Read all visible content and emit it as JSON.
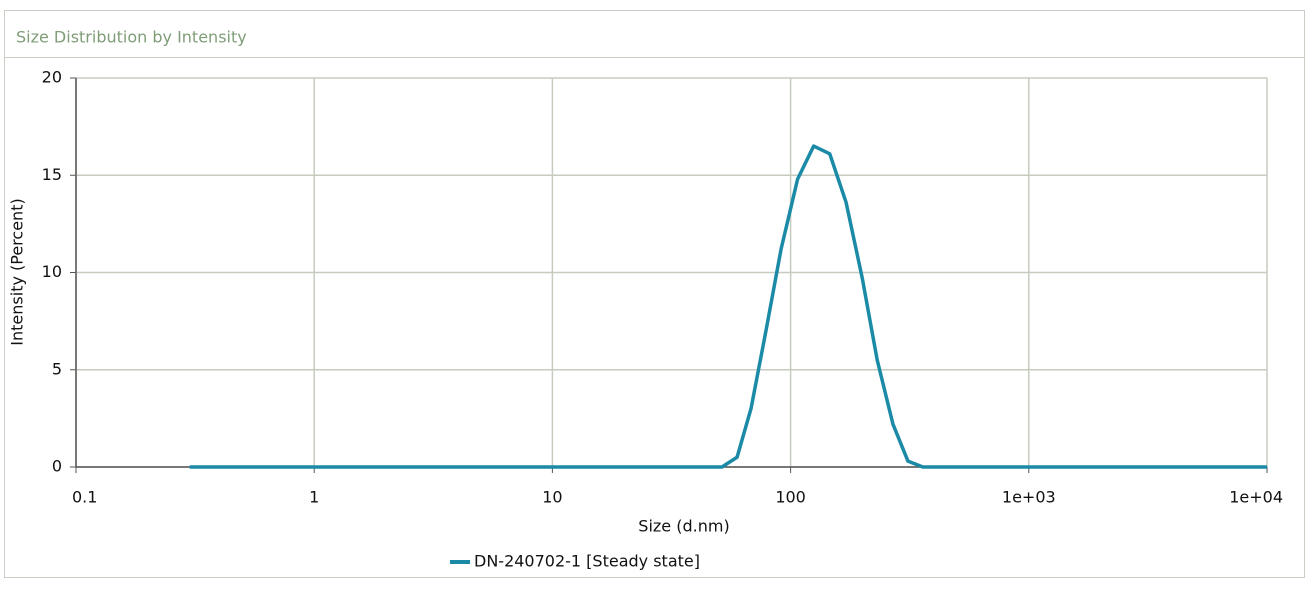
{
  "chart_data": {
    "type": "line",
    "title": "Size Distribution by Intensity",
    "x_label": "Size (d.nm)",
    "y_label": "Intensity (Percent)",
    "x": [
      0.3,
      51.5,
      59.6,
      68.2,
      78.8,
      91.2,
      107,
      125,
      146,
      171,
      200,
      231,
      269,
      311,
      359,
      10000
    ],
    "series": [
      {
        "name": "DN-240702-1 [Steady state]",
        "color": "#1b8aa6",
        "values": [
          0,
          0,
          0.5,
          3.0,
          7.0,
          11.2,
          14.8,
          16.5,
          16.1,
          13.6,
          9.7,
          5.5,
          2.2,
          0.3,
          0,
          0
        ]
      }
    ],
    "xscale": "log",
    "xlim": [
      0.1,
      10000
    ],
    "xticks": [
      0.1,
      1,
      10,
      100,
      {
        "value": 1000,
        "label": "1e+03"
      },
      {
        "value": 10000,
        "label": "1e+04"
      }
    ],
    "ylim": [
      0,
      20
    ],
    "yticks": [
      0,
      5,
      10,
      15,
      20
    ],
    "grid": true,
    "legend": "bottom"
  }
}
